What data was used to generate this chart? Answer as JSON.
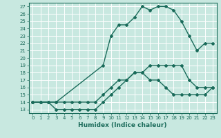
{
  "xlabel": "Humidex (Indice chaleur)",
  "background_color": "#c8e8e0",
  "grid_color": "#ffffff",
  "line_color": "#1a6b5a",
  "xlim": [
    -0.5,
    23.5
  ],
  "ylim": [
    12.5,
    27.5
  ],
  "xticks": [
    0,
    1,
    2,
    3,
    4,
    5,
    6,
    7,
    8,
    9,
    10,
    11,
    12,
    13,
    14,
    15,
    16,
    17,
    18,
    19,
    20,
    21,
    22,
    23
  ],
  "yticks": [
    13,
    14,
    15,
    16,
    17,
    18,
    19,
    20,
    21,
    22,
    23,
    24,
    25,
    26,
    27
  ],
  "line1_x": [
    0,
    1,
    2,
    3,
    4,
    5,
    6,
    7,
    8,
    9,
    10,
    11,
    12,
    13,
    14,
    15,
    16,
    17,
    18,
    19,
    20,
    21,
    22,
    23
  ],
  "line1_y": [
    14,
    14,
    14,
    14,
    14,
    14,
    14,
    14,
    14,
    15,
    16,
    17,
    17,
    18,
    18,
    19,
    19,
    19,
    19,
    19,
    17,
    16,
    16,
    16
  ],
  "line2_x": [
    0,
    1,
    2,
    3,
    4,
    5,
    6,
    7,
    8,
    9,
    10,
    11,
    12,
    13,
    14,
    15,
    16,
    17,
    18,
    19,
    20,
    21,
    22,
    23
  ],
  "line2_y": [
    14,
    14,
    14,
    13,
    13,
    13,
    13,
    13,
    13,
    14,
    15,
    16,
    17,
    18,
    18,
    17,
    17,
    16,
    15,
    15,
    15,
    15,
    15,
    16
  ],
  "line3_x": [
    0,
    1,
    2,
    3,
    9,
    10,
    11,
    12,
    13,
    14,
    15,
    16,
    17,
    18,
    19,
    20,
    21,
    22,
    23
  ],
  "line3_y": [
    14,
    14,
    14,
    14,
    19,
    23,
    24.5,
    24.5,
    25.5,
    27,
    26.5,
    27,
    27,
    26.5,
    25,
    23,
    21,
    22,
    22
  ],
  "marker": "D",
  "markersize": 2.0,
  "linewidth": 1.0,
  "tick_fontsize": 5.0,
  "xlabel_fontsize": 6.5
}
